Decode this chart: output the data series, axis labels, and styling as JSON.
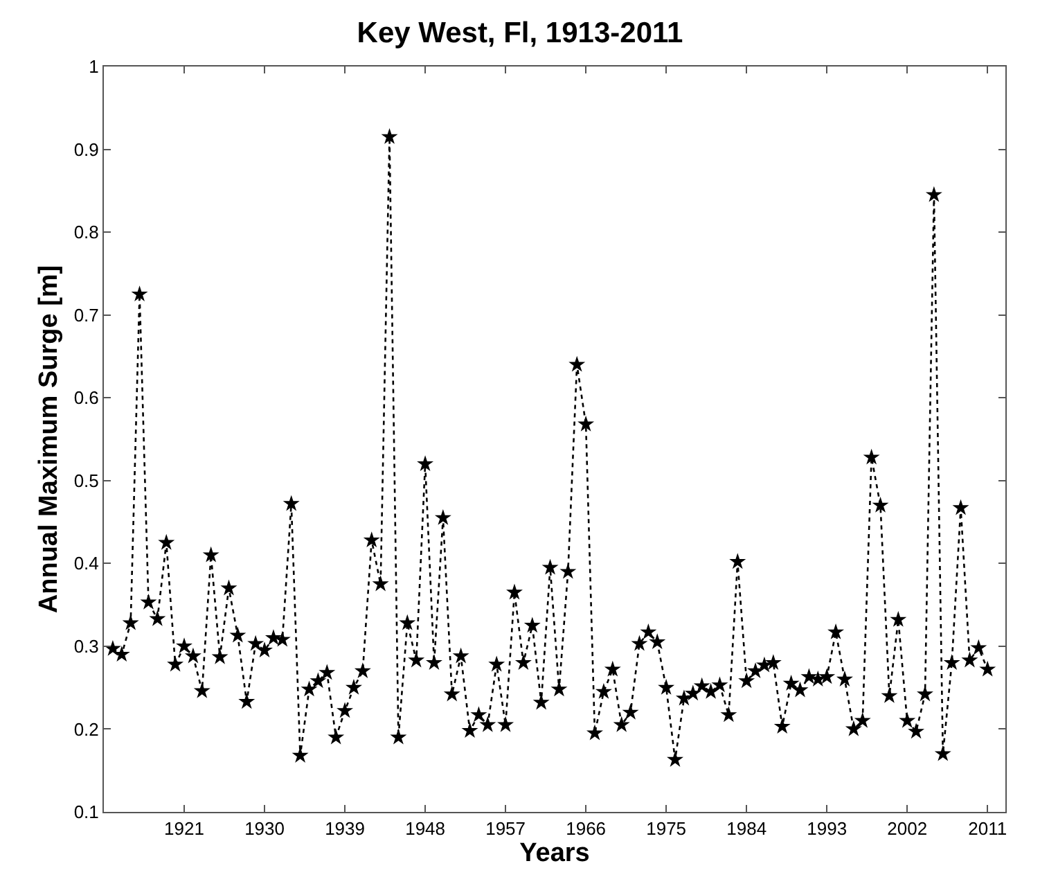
{
  "chart_data": {
    "type": "line",
    "title": "Key West, Fl, 1913-2011",
    "xlabel": "Years",
    "ylabel": "Annual Maximum Surge [m]",
    "x": [
      1913,
      1914,
      1915,
      1916,
      1917,
      1918,
      1919,
      1920,
      1921,
      1922,
      1923,
      1924,
      1925,
      1926,
      1927,
      1928,
      1929,
      1930,
      1931,
      1932,
      1933,
      1934,
      1935,
      1936,
      1937,
      1938,
      1939,
      1940,
      1941,
      1942,
      1943,
      1944,
      1945,
      1946,
      1947,
      1948,
      1949,
      1950,
      1951,
      1952,
      1953,
      1954,
      1955,
      1956,
      1957,
      1958,
      1959,
      1960,
      1961,
      1962,
      1963,
      1964,
      1965,
      1966,
      1967,
      1968,
      1969,
      1970,
      1971,
      1972,
      1973,
      1974,
      1975,
      1976,
      1977,
      1978,
      1979,
      1980,
      1981,
      1982,
      1983,
      1984,
      1985,
      1986,
      1987,
      1988,
      1989,
      1990,
      1991,
      1992,
      1993,
      1994,
      1995,
      1996,
      1997,
      1998,
      1999,
      2000,
      2001,
      2002,
      2003,
      2004,
      2005,
      2006,
      2007,
      2008,
      2009,
      2010,
      2011
    ],
    "series": [
      {
        "color": "#000000",
        "values": [
          0.297,
          0.29,
          0.328,
          0.725,
          0.353,
          0.333,
          0.425,
          0.278,
          0.3,
          0.288,
          0.246,
          0.41,
          0.287,
          0.37,
          0.313,
          0.233,
          0.303,
          0.295,
          0.31,
          0.308,
          0.472,
          0.168,
          0.248,
          0.258,
          0.268,
          0.19,
          0.222,
          0.25,
          0.27,
          0.428,
          0.375,
          0.915,
          0.19,
          0.328,
          0.283,
          0.52,
          0.28,
          0.455,
          0.242,
          0.288,
          0.198,
          0.217,
          0.205,
          0.278,
          0.205,
          0.365,
          0.28,
          0.325,
          0.232,
          0.395,
          0.248,
          0.39,
          0.64,
          0.568,
          0.195,
          0.245,
          0.272,
          0.205,
          0.22,
          0.303,
          0.317,
          0.305,
          0.25,
          0.163,
          0.237,
          0.243,
          0.252,
          0.245,
          0.253,
          0.217,
          0.402,
          0.258,
          0.27,
          0.277,
          0.28,
          0.203,
          0.255,
          0.247,
          0.263,
          0.26,
          0.263,
          0.317,
          0.26,
          0.2,
          0.21,
          0.528,
          0.47,
          0.24,
          0.332,
          0.21,
          0.197,
          0.242,
          0.845,
          0.17,
          0.28,
          0.467,
          0.283,
          0.298,
          0.272
        ]
      }
    ],
    "xlim": [
      1912,
      2013
    ],
    "xticks": [
      1921,
      1930,
      1939,
      1948,
      1957,
      1966,
      1975,
      1984,
      1993,
      2002,
      2011
    ],
    "ylim": [
      0.1,
      1
    ],
    "yticks": [
      0.1,
      0.2,
      0.3,
      0.4,
      0.5,
      0.6,
      0.7,
      0.8,
      0.9,
      1
    ],
    "marker": "star",
    "line_style": "dotted",
    "grid": false
  }
}
